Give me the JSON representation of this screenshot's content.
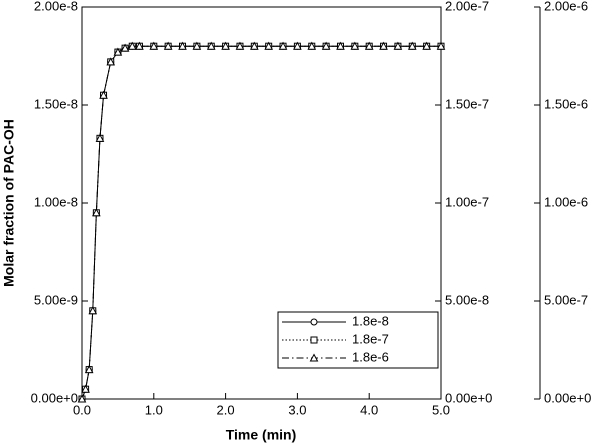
{
  "chart_data": {
    "type": "line",
    "xlabel": "Time (min)",
    "ylabel": "Molar fraction of PAC-OH",
    "x": [
      0,
      0.05,
      0.1,
      0.15,
      0.2,
      0.25,
      0.3,
      0.4,
      0.5,
      0.6,
      0.7,
      0.8,
      1.0,
      1.2,
      1.4,
      1.6,
      1.8,
      2.0,
      2.2,
      2.4,
      2.6,
      2.8,
      3.0,
      3.2,
      3.4,
      3.6,
      3.8,
      4.0,
      4.2,
      4.4,
      4.6,
      4.8,
      5.0
    ],
    "series": [
      {
        "name": "1.8e-8",
        "color": "#000000",
        "axis": "y",
        "marker": "circle",
        "line_style": "solid",
        "values": [
          0,
          5e-10,
          1.5e-09,
          4.5e-09,
          9.5e-09,
          1.33e-08,
          1.55e-08,
          1.72e-08,
          1.77e-08,
          1.79e-08,
          1.8e-08,
          1.8e-08,
          1.8e-08,
          1.8e-08,
          1.8e-08,
          1.8e-08,
          1.8e-08,
          1.8e-08,
          1.8e-08,
          1.8e-08,
          1.8e-08,
          1.8e-08,
          1.8e-08,
          1.8e-08,
          1.8e-08,
          1.8e-08,
          1.8e-08,
          1.8e-08,
          1.8e-08,
          1.8e-08,
          1.8e-08,
          1.8e-08,
          1.8e-08
        ]
      },
      {
        "name": "1.8e-7",
        "color": "#000000",
        "axis": "y2",
        "marker": "square",
        "line_style": "dotted",
        "values": [
          0,
          5e-09,
          1.5e-08,
          4.5e-08,
          9.5e-08,
          1.33e-07,
          1.55e-07,
          1.72e-07,
          1.77e-07,
          1.79e-07,
          1.8e-07,
          1.8e-07,
          1.8e-07,
          1.8e-07,
          1.8e-07,
          1.8e-07,
          1.8e-07,
          1.8e-07,
          1.8e-07,
          1.8e-07,
          1.8e-07,
          1.8e-07,
          1.8e-07,
          1.8e-07,
          1.8e-07,
          1.8e-07,
          1.8e-07,
          1.8e-07,
          1.8e-07,
          1.8e-07,
          1.8e-07,
          1.8e-07,
          1.8e-07
        ]
      },
      {
        "name": "1.8e-6",
        "color": "#000000",
        "axis": "y3",
        "marker": "triangle",
        "line_style": "dashdot",
        "values": [
          0,
          5e-08,
          1.5e-07,
          4.5e-07,
          9.5e-07,
          1.33e-06,
          1.55e-06,
          1.72e-06,
          1.77e-06,
          1.79e-06,
          1.8e-06,
          1.8e-06,
          1.8e-06,
          1.8e-06,
          1.8e-06,
          1.8e-06,
          1.8e-06,
          1.8e-06,
          1.8e-06,
          1.8e-06,
          1.8e-06,
          1.8e-06,
          1.8e-06,
          1.8e-06,
          1.8e-06,
          1.8e-06,
          1.8e-06,
          1.8e-06,
          1.8e-06,
          1.8e-06,
          1.8e-06,
          1.8e-06,
          1.8e-06
        ]
      }
    ],
    "xlim": [
      0,
      5
    ],
    "xticks": [
      {
        "value": 0,
        "label": "0.0"
      },
      {
        "value": 1,
        "label": "1.0"
      },
      {
        "value": 2,
        "label": "2.0"
      },
      {
        "value": 3,
        "label": "3.0"
      },
      {
        "value": 4,
        "label": "4.0"
      },
      {
        "value": 5,
        "label": "5.0"
      }
    ],
    "ylim": [
      0,
      2e-08
    ],
    "yticks": [
      {
        "value": 0,
        "label": "0.00e+0"
      },
      {
        "value": 5e-09,
        "label": "5.00e-9"
      },
      {
        "value": 1e-08,
        "label": "1.00e-8"
      },
      {
        "value": 1.5e-08,
        "label": "1.50e-8"
      },
      {
        "value": 2e-08,
        "label": "2.00e-8"
      }
    ],
    "y2lim": [
      0,
      2e-07
    ],
    "y2ticks": [
      {
        "value": 0,
        "label": "0.00e+0"
      },
      {
        "value": 5e-08,
        "label": "5.00e-8"
      },
      {
        "value": 1e-07,
        "label": "1.00e-7"
      },
      {
        "value": 1.5e-07,
        "label": "1.50e-7"
      },
      {
        "value": 2e-07,
        "label": "2.00e-7"
      }
    ],
    "y3lim": [
      0,
      2e-06
    ],
    "y3ticks": [
      {
        "value": 0,
        "label": "0.00e+0"
      },
      {
        "value": 5e-07,
        "label": "5.00e-7"
      },
      {
        "value": 1e-06,
        "label": "1.00e-6"
      },
      {
        "value": 1.5e-06,
        "label": "1.50e-6"
      },
      {
        "value": 2e-06,
        "label": "2.00e-6"
      }
    ],
    "legend": "lower right"
  }
}
